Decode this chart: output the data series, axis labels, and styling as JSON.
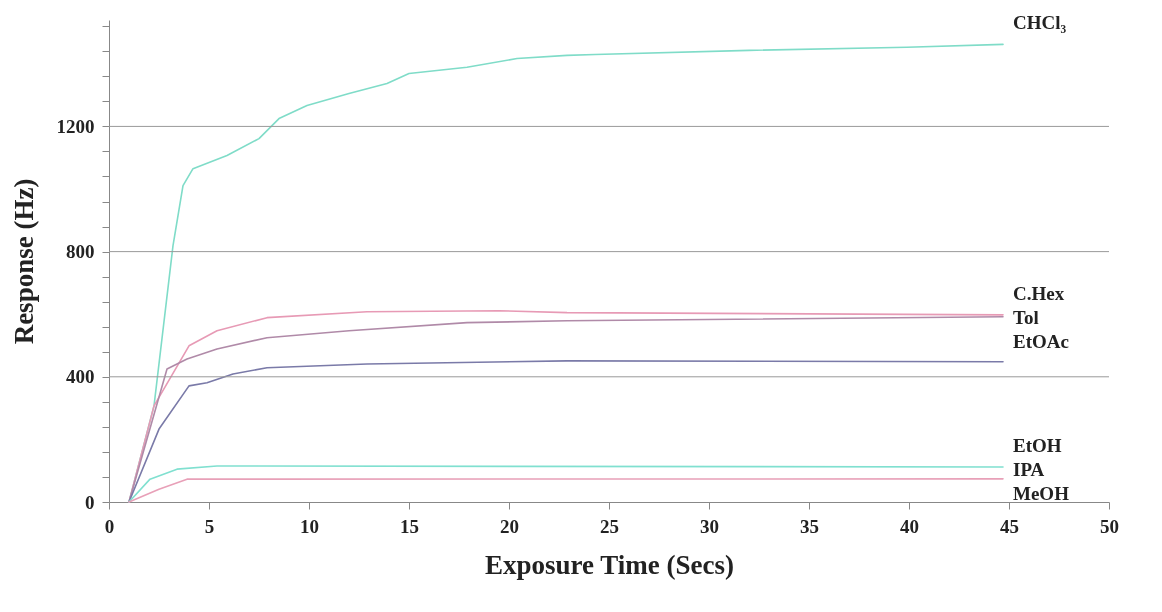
{
  "chart_data": {
    "type": "line",
    "xlabel": "Exposure Time (Secs)",
    "ylabel": "Response (Hz)",
    "xlim": [
      0,
      50
    ],
    "xticks": [
      0,
      5,
      10,
      15,
      20,
      25,
      30,
      35,
      40,
      45,
      50
    ],
    "ylim": [
      0,
      1540
    ],
    "yticks": [
      0,
      {
        "value": 80,
        "label": null
      },
      {
        "value": 160,
        "label": null
      },
      {
        "value": 240,
        "label": null
      },
      {
        "value": 320,
        "label": null
      },
      400,
      {
        "value": 480,
        "label": null
      },
      {
        "value": 560,
        "label": null
      },
      {
        "value": 640,
        "label": null
      },
      {
        "value": 720,
        "label": null
      },
      800,
      {
        "value": 880,
        "label": null
      },
      {
        "value": 960,
        "label": null
      },
      {
        "value": 1040,
        "label": null
      },
      {
        "value": 1120,
        "label": null
      },
      1200,
      {
        "value": 1280,
        "label": null
      },
      {
        "value": 1360,
        "label": null
      },
      {
        "value": 1440,
        "label": null
      },
      {
        "value": 1520,
        "label": null
      }
    ],
    "grid": "y",
    "legend": false,
    "marker": "none",
    "line_style": "solid",
    "series": [
      {
        "name": "CHCl₃",
        "color": "#7fdcc8",
        "x": [
          1,
          2.25,
          3.2,
          3.7,
          4.2,
          5.9,
          7.5,
          8.5,
          9.9,
          12,
          13.9,
          15,
          17.9,
          20.4,
          22.9,
          24.3,
          32,
          39.9,
          44.7
        ],
        "values": [
          0,
          307,
          819,
          1011,
          1065,
          1107,
          1161,
          1225,
          1267,
          1305,
          1337,
          1369,
          1389,
          1417,
          1427,
          1430,
          1443,
          1453,
          1462
        ]
      },
      {
        "name": "C.Hex",
        "color": "#e79ab5",
        "x": [
          1,
          2.25,
          4,
          5.4,
          7.9,
          12.9,
          19.5,
          22.9,
          44.7
        ],
        "values": [
          0,
          307,
          499,
          547,
          589,
          608,
          611,
          605,
          598
        ]
      },
      {
        "name": "Tol",
        "color": "#b08aa8",
        "x": [
          1,
          2.9,
          3.9,
          5.4,
          7.9,
          12,
          17.9,
          22.9,
          44.7
        ],
        "values": [
          0,
          425,
          457,
          489,
          525,
          547,
          573,
          579,
          592
        ]
      },
      {
        "name": "EtOAc",
        "color": "#7a7aa8",
        "x": [
          1,
          2.5,
          4,
          4.9,
          6.2,
          7.9,
          12.9,
          22.9,
          44.7
        ],
        "values": [
          0,
          233,
          371,
          381,
          409,
          429,
          441,
          451,
          448
        ]
      },
      {
        "name": "EtOH",
        "color": "#80e0d0",
        "x": [
          1,
          2.05,
          3.4,
          5.4,
          44.7
        ],
        "values": [
          0,
          73,
          105,
          115,
          112
        ]
      },
      {
        "name": "MeOH",
        "color": "#e8a0b8",
        "x": [
          1,
          2.5,
          3.9,
          7.9,
          44.7
        ],
        "values": [
          0,
          41,
          73,
          73,
          74
        ]
      }
    ],
    "annotations": [
      {
        "text": "IPA",
        "x": 44.7,
        "y": 112
      }
    ]
  }
}
